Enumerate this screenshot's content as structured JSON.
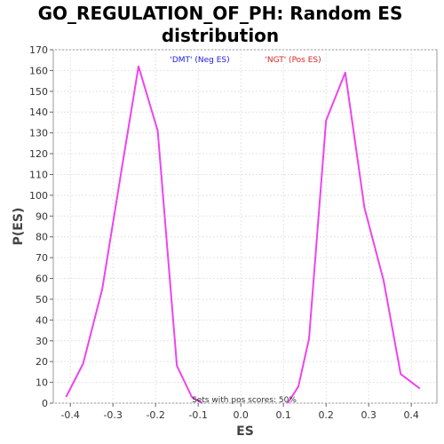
{
  "chart_data": {
    "type": "line",
    "title_line1": "GO_REGULATION_OF_PH: Random ES",
    "title_line2": "distribution",
    "xlabel": "ES",
    "ylabel": "P(ES)",
    "xlim": [
      -0.44,
      0.46
    ],
    "ylim": [
      0,
      170
    ],
    "xticks": [
      -0.4,
      -0.3,
      -0.2,
      -0.1,
      0.0,
      0.1,
      0.2,
      0.3,
      0.4
    ],
    "xtick_labels": [
      "-0.4",
      "-0.3",
      "-0.2",
      "-0.1",
      "0.0",
      "0.1",
      "0.2",
      "0.3",
      "0.4"
    ],
    "yticks": [
      0,
      10,
      20,
      30,
      40,
      50,
      60,
      70,
      80,
      90,
      100,
      110,
      120,
      130,
      140,
      150,
      160,
      170
    ],
    "ytick_labels": [
      "0",
      "10",
      "20",
      "30",
      "40",
      "50",
      "60",
      "70",
      "80",
      "90",
      "100",
      "110",
      "120",
      "130",
      "140",
      "150",
      "160",
      "170"
    ],
    "legend": [
      {
        "label": "'DMT' (Neg ES)",
        "color": "#2222dd"
      },
      {
        "label": "'NGT' (Pos ES)",
        "color": "#dd2222"
      }
    ],
    "annotation": "Sets with pos scores: 50%",
    "line_color": "#ee44ee",
    "series": [
      {
        "values": [
          {
            "x": -0.41,
            "y": 3
          },
          {
            "x": -0.37,
            "y": 19
          },
          {
            "x": -0.325,
            "y": 55
          },
          {
            "x": -0.28,
            "y": 112
          },
          {
            "x": -0.24,
            "y": 162
          },
          {
            "x": -0.195,
            "y": 131
          },
          {
            "x": -0.15,
            "y": 18
          },
          {
            "x": -0.115,
            "y": 3
          },
          {
            "x": -0.09,
            "y": 0
          }
        ]
      },
      {
        "values": [
          {
            "x": 0.11,
            "y": 0
          },
          {
            "x": 0.135,
            "y": 8
          },
          {
            "x": 0.16,
            "y": 31
          },
          {
            "x": 0.2,
            "y": 136
          },
          {
            "x": 0.245,
            "y": 159
          },
          {
            "x": 0.29,
            "y": 94
          },
          {
            "x": 0.335,
            "y": 59
          },
          {
            "x": 0.375,
            "y": 14
          },
          {
            "x": 0.42,
            "y": 7
          }
        ]
      }
    ]
  }
}
